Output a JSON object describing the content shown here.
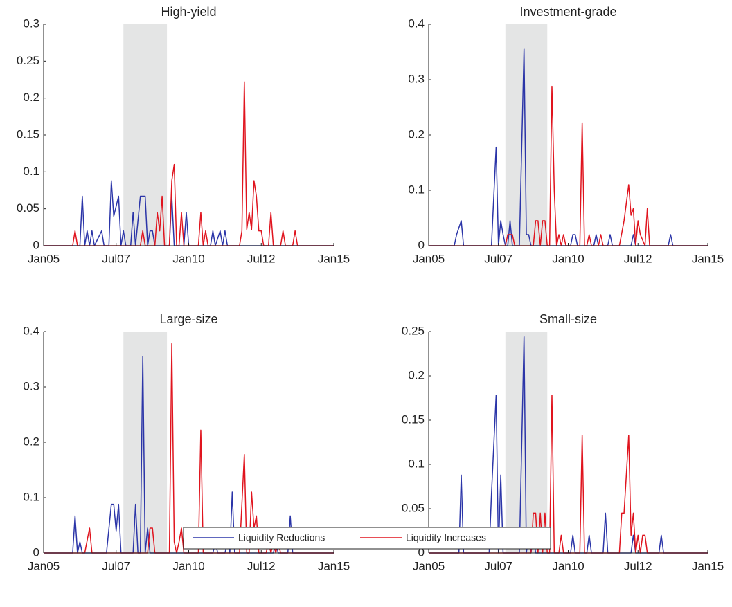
{
  "chart_data": [
    {
      "type": "line",
      "title": "High-yield",
      "xlim": [
        "2005-01",
        "2015-01"
      ],
      "xticks": [
        {
          "value": "2005-01",
          "label": "Jan05"
        },
        {
          "value": "2007-07",
          "label": "Jul07"
        },
        {
          "value": "2010-01",
          "label": "Jan10"
        },
        {
          "value": "2012-07",
          "label": "Jul12"
        },
        {
          "value": "2015-01",
          "label": "Jan15"
        }
      ],
      "ylim": [
        0,
        0.3
      ],
      "yticks": [
        0,
        0.05,
        0.1,
        0.15,
        0.2,
        0.25,
        0.3
      ],
      "shade": [
        "2007-10",
        "2009-04"
      ],
      "shade_color": "#e4e5e5",
      "series": [
        {
          "name": "Liquidity Reductions",
          "color": "#2b35a8",
          "x": [
            "2005-01",
            "2006-04",
            "2006-05",
            "2006-06",
            "2006-07",
            "2006-08",
            "2006-09",
            "2006-10",
            "2007-01",
            "2007-02",
            "2007-04",
            "2007-05",
            "2007-06",
            "2007-08",
            "2007-09",
            "2007-10",
            "2007-11",
            "2008-01",
            "2008-02",
            "2008-03",
            "2008-05",
            "2008-07",
            "2008-08",
            "2008-09",
            "2008-10",
            "2008-11",
            "2009-05",
            "2009-06",
            "2009-07",
            "2009-11",
            "2009-12",
            "2010-01",
            "2010-10",
            "2010-11",
            "2010-12",
            "2011-02",
            "2011-03",
            "2011-04",
            "2011-05",
            "2015-01"
          ],
          "values": [
            0,
            0,
            0.067,
            0,
            0.02,
            0,
            0.02,
            0,
            0.02,
            0,
            0,
            0.088,
            0.04,
            0.067,
            0,
            0.02,
            0,
            0,
            0.045,
            0,
            0.067,
            0.067,
            0,
            0.02,
            0.02,
            0,
            0,
            0.067,
            0,
            0,
            0.045,
            0,
            0,
            0.02,
            0,
            0.02,
            0,
            0.02,
            0,
            0
          ]
        },
        {
          "name": "Liquidity Increases",
          "color": "#e0141e",
          "x": [
            "2005-01",
            "2006-01",
            "2006-02",
            "2006-03",
            "2008-05",
            "2008-06",
            "2008-07",
            "2008-11",
            "2008-12",
            "2009-01",
            "2009-02",
            "2009-03",
            "2009-05",
            "2009-06",
            "2009-07",
            "2009-08",
            "2009-09",
            "2009-10",
            "2009-11",
            "2010-05",
            "2010-06",
            "2010-07",
            "2010-08",
            "2010-09",
            "2011-10",
            "2011-11",
            "2011-12",
            "2012-01",
            "2012-02",
            "2012-03",
            "2012-04",
            "2012-05",
            "2012-06",
            "2012-07",
            "2012-08",
            "2012-10",
            "2012-11",
            "2012-12",
            "2013-03",
            "2013-04",
            "2013-05",
            "2013-08",
            "2013-09",
            "2013-10",
            "2015-01"
          ],
          "values": [
            0,
            0,
            0.02,
            0,
            0,
            0.02,
            0,
            0,
            0.045,
            0.02,
            0.067,
            0,
            0,
            0.088,
            0.11,
            0,
            0,
            0.045,
            0,
            0,
            0.045,
            0,
            0.02,
            0,
            0,
            0.02,
            0.222,
            0.022,
            0.045,
            0.022,
            0.088,
            0.067,
            0.02,
            0.02,
            0,
            0,
            0.045,
            0,
            0,
            0.02,
            0,
            0,
            0.02,
            0,
            0
          ]
        }
      ]
    },
    {
      "type": "line",
      "title": "Investment-grade",
      "xlim": [
        "2005-01",
        "2015-01"
      ],
      "xticks": [
        {
          "value": "2005-01",
          "label": "Jan05"
        },
        {
          "value": "2007-07",
          "label": "Jul07"
        },
        {
          "value": "2010-01",
          "label": "Jan10"
        },
        {
          "value": "2012-07",
          "label": "Jul12"
        },
        {
          "value": "2015-01",
          "label": "Jan15"
        }
      ],
      "ylim": [
        0,
        0.4
      ],
      "yticks": [
        0,
        0.1,
        0.2,
        0.3,
        0.4
      ],
      "shade": [
        "2007-10",
        "2009-04"
      ],
      "shade_color": "#e4e5e5",
      "series": [
        {
          "name": "Liquidity Reductions",
          "color": "#2b35a8",
          "x": [
            "2005-01",
            "2005-12",
            "2006-01",
            "2006-03",
            "2006-04",
            "2007-04",
            "2007-06",
            "2007-07",
            "2007-08",
            "2007-09",
            "2007-10",
            "2007-11",
            "2007-12",
            "2008-01",
            "2008-04",
            "2008-06",
            "2008-07",
            "2008-08",
            "2008-09",
            "2010-02",
            "2010-03",
            "2010-04",
            "2010-05",
            "2010-12",
            "2011-01",
            "2011-02",
            "2011-06",
            "2011-07",
            "2011-08",
            "2012-04",
            "2012-05",
            "2012-06",
            "2013-08",
            "2013-09",
            "2013-10",
            "2015-01"
          ],
          "values": [
            0,
            0,
            0.02,
            0.045,
            0,
            0,
            0.178,
            0,
            0.045,
            0.02,
            0,
            0,
            0.045,
            0,
            0,
            0.355,
            0.02,
            0.02,
            0,
            0,
            0.02,
            0.02,
            0,
            0,
            0.02,
            0,
            0,
            0.02,
            0,
            0,
            0.02,
            0,
            0,
            0.02,
            0,
            0
          ]
        },
        {
          "name": "Liquidity Increases",
          "color": "#e0141e",
          "x": [
            "2005-01",
            "2007-10",
            "2007-11",
            "2008-01",
            "2008-02",
            "2008-10",
            "2008-11",
            "2008-12",
            "2009-01",
            "2009-02",
            "2009-03",
            "2009-04",
            "2009-05",
            "2009-06",
            "2009-07",
            "2009-08",
            "2009-09",
            "2009-10",
            "2009-11",
            "2009-12",
            "2010-06",
            "2010-07",
            "2010-08",
            "2010-09",
            "2010-10",
            "2010-11",
            "2011-02",
            "2011-03",
            "2011-04",
            "2011-11",
            "2012-01",
            "2012-03",
            "2012-04",
            "2012-05",
            "2012-06",
            "2012-07",
            "2012-08",
            "2012-10",
            "2012-11",
            "2012-12",
            "2015-01"
          ],
          "values": [
            0,
            0,
            0.02,
            0.02,
            0,
            0,
            0.045,
            0.045,
            0,
            0.045,
            0.045,
            0,
            0,
            0.288,
            0.1,
            0,
            0.02,
            0,
            0.02,
            0,
            0,
            0.222,
            0,
            0,
            0.02,
            0,
            0,
            0.02,
            0,
            0,
            0.045,
            0.11,
            0.055,
            0.067,
            0,
            0.045,
            0.02,
            0,
            0.067,
            0,
            0
          ]
        }
      ]
    },
    {
      "type": "line",
      "title": "Large-size",
      "xlim": [
        "2005-01",
        "2015-01"
      ],
      "xticks": [
        {
          "value": "2005-01",
          "label": "Jan05"
        },
        {
          "value": "2007-07",
          "label": "Jul07"
        },
        {
          "value": "2010-01",
          "label": "Jan10"
        },
        {
          "value": "2012-07",
          "label": "Jul12"
        },
        {
          "value": "2015-01",
          "label": "Jan15"
        }
      ],
      "ylim": [
        0,
        0.4
      ],
      "yticks": [
        0,
        0.1,
        0.2,
        0.3,
        0.4
      ],
      "shade": [
        "2007-10",
        "2009-04"
      ],
      "shade_color": "#e4e5e5",
      "series": [
        {
          "name": "Liquidity Reductions",
          "color": "#2b35a8",
          "x": [
            "2005-01",
            "2006-01",
            "2006-02",
            "2006-03",
            "2006-04",
            "2006-05",
            "2007-03",
            "2007-05",
            "2007-06",
            "2007-07",
            "2007-08",
            "2007-09",
            "2008-02",
            "2008-03",
            "2008-04",
            "2008-05",
            "2008-06",
            "2008-07",
            "2008-08",
            "2008-09",
            "2010-11",
            "2010-12",
            "2011-01",
            "2011-04",
            "2011-05",
            "2011-06",
            "2011-07",
            "2011-08",
            "2012-12",
            "2013-01",
            "2013-02",
            "2013-06",
            "2013-07",
            "2013-08",
            "2015-01"
          ],
          "values": [
            0,
            0,
            0.067,
            0,
            0.02,
            0,
            0,
            0.088,
            0.088,
            0.04,
            0.088,
            0,
            0,
            0.088,
            0,
            0,
            0.355,
            0,
            0.045,
            0,
            0,
            0.02,
            0,
            0,
            0.02,
            0,
            0.11,
            0,
            0,
            0.02,
            0,
            0,
            0.067,
            0,
            0
          ]
        },
        {
          "name": "Liquidity Increases",
          "color": "#e0141e",
          "x": [
            "2005-01",
            "2006-06",
            "2006-08",
            "2006-09",
            "2008-08",
            "2008-09",
            "2008-10",
            "2008-11",
            "2009-05",
            "2009-06",
            "2009-07",
            "2009-08",
            "2009-09",
            "2009-10",
            "2009-11",
            "2010-05",
            "2010-06",
            "2010-07",
            "2011-10",
            "2011-12",
            "2012-01",
            "2012-02",
            "2012-03",
            "2012-04",
            "2012-05",
            "2012-06",
            "2012-09",
            "2012-10",
            "2012-11",
            "2012-12",
            "2013-01",
            "2013-02",
            "2013-03",
            "2015-01"
          ],
          "values": [
            0,
            0,
            0.045,
            0,
            0,
            0.045,
            0.045,
            0,
            0,
            0.378,
            0.02,
            0,
            0.02,
            0.045,
            0,
            0,
            0.222,
            0,
            0,
            0.178,
            0,
            0,
            0.11,
            0.045,
            0.067,
            0,
            0,
            0.02,
            0,
            0.02,
            0,
            0.02,
            0,
            0
          ]
        }
      ]
    },
    {
      "type": "line",
      "title": "Small-size",
      "xlim": [
        "2005-01",
        "2015-01"
      ],
      "xticks": [
        {
          "value": "2005-01",
          "label": "Jan05"
        },
        {
          "value": "2007-07",
          "label": "Jul07"
        },
        {
          "value": "2010-01",
          "label": "Jan10"
        },
        {
          "value": "2012-07",
          "label": "Jul12"
        },
        {
          "value": "2015-01",
          "label": "Jan15"
        }
      ],
      "ylim": [
        0,
        0.25
      ],
      "yticks": [
        0,
        0.05,
        0.1,
        0.15,
        0.2,
        0.25
      ],
      "shade": [
        "2007-10",
        "2009-04"
      ],
      "shade_color": "#e4e5e5",
      "series": [
        {
          "name": "Liquidity Reductions",
          "color": "#2b35a8",
          "x": [
            "2005-01",
            "2006-02",
            "2006-03",
            "2006-04",
            "2007-03",
            "2007-04",
            "2007-06",
            "2007-07",
            "2007-08",
            "2007-09",
            "2008-04",
            "2008-06",
            "2008-07",
            "2008-08",
            "2008-09",
            "2008-10",
            "2008-11",
            "2010-02",
            "2010-03",
            "2010-04",
            "2010-09",
            "2010-10",
            "2010-11",
            "2011-04",
            "2011-05",
            "2011-06",
            "2012-04",
            "2012-05",
            "2012-06",
            "2013-04",
            "2013-05",
            "2013-06",
            "2015-01"
          ],
          "values": [
            0,
            0,
            0.088,
            0,
            0,
            0.066,
            0.178,
            0,
            0.088,
            0,
            0,
            0.244,
            0,
            0.02,
            0,
            0.02,
            0,
            0,
            0.02,
            0,
            0,
            0.02,
            0,
            0,
            0.045,
            0,
            0,
            0.02,
            0,
            0,
            0.02,
            0,
            0
          ]
        },
        {
          "name": "Liquidity Increases",
          "color": "#e0141e",
          "x": [
            "2005-01",
            "2008-09",
            "2008-10",
            "2008-11",
            "2008-12",
            "2009-01",
            "2009-02",
            "2009-03",
            "2009-04",
            "2009-05",
            "2009-06",
            "2009-07",
            "2009-09",
            "2009-10",
            "2009-11",
            "2010-06",
            "2010-07",
            "2010-08",
            "2011-11",
            "2011-12",
            "2012-01",
            "2012-03",
            "2012-04",
            "2012-05",
            "2012-06",
            "2012-07",
            "2012-08",
            "2012-09",
            "2012-10",
            "2012-11",
            "2015-01"
          ],
          "values": [
            0,
            0,
            0.045,
            0.045,
            0,
            0.045,
            0,
            0.045,
            0,
            0,
            0.178,
            0,
            0,
            0.02,
            0,
            0,
            0.133,
            0,
            0,
            0.045,
            0.045,
            0.133,
            0.02,
            0.045,
            0,
            0.02,
            0,
            0.02,
            0.02,
            0,
            0
          ]
        }
      ]
    }
  ]
}
